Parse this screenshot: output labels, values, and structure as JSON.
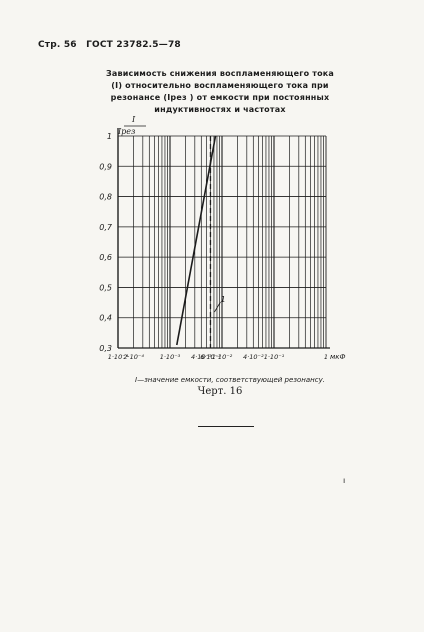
{
  "header": {
    "page": "Стр. 56",
    "standard": "ГОСТ 23782.5—78"
  },
  "caption": {
    "line1": "Зависимость снижения воспламеняющего тока",
    "line2": "(I) относительно воспламеняющего тока при",
    "line3": "резонансе (Iрез ) от емкости при постоянных",
    "line4": "индуктивностях и частотах"
  },
  "chart_data": {
    "type": "line",
    "xscale": "log",
    "xunit": "мкФ",
    "yaxis_label_num": "I",
    "yaxis_label_den": "Iрез",
    "x_tick_labels": [
      "1·10⁻⁴",
      "2·10⁻⁴",
      "1·10⁻³",
      "4·10⁻³",
      "6·10⁻³",
      "1·10⁻²",
      "4·10⁻²",
      "1·10⁻¹",
      "1"
    ],
    "y_tick_labels": [
      "0,3",
      "0,4",
      "0,5",
      "0,6",
      "0,7",
      "0,8",
      "0,9",
      "1"
    ],
    "ylim": [
      0.3,
      1.0
    ],
    "series": [
      {
        "x": [
          0.00135,
          0.0075
        ],
        "y": [
          0.31,
          1.0
        ]
      }
    ],
    "annotations": [
      {
        "text": "1",
        "kind": "dashed-vertical",
        "x": 0.006
      }
    ],
    "grid": true
  },
  "note": "I—значение емкости, соответствующей резонансу.",
  "figure_label": "Черт. 16",
  "colors": {
    "ink": "#1c1c1c",
    "paper": "#f7f6f2"
  }
}
